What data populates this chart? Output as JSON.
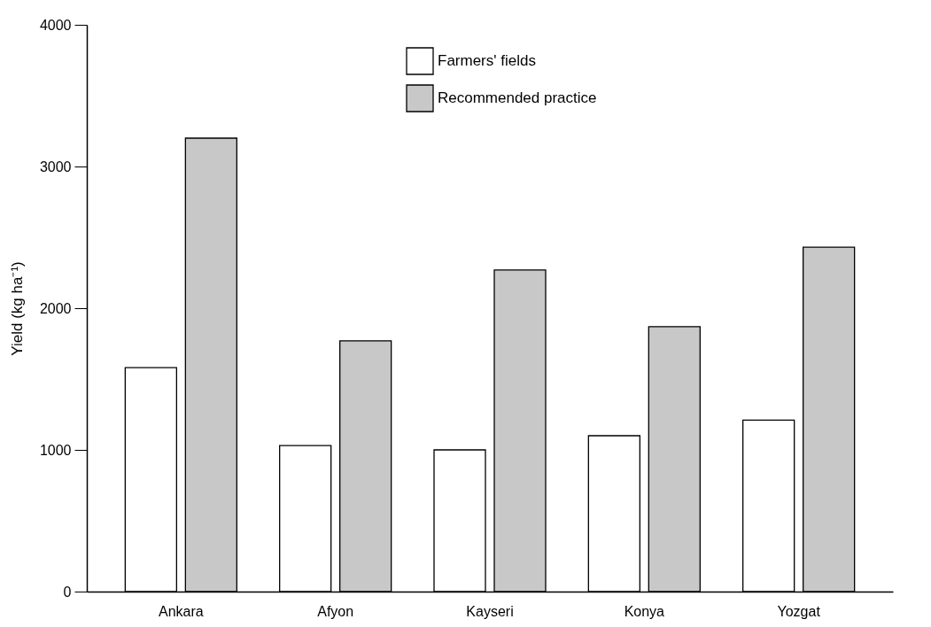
{
  "chart_data": {
    "type": "bar",
    "ylabel": "Yield (kg ha⁻¹)",
    "categories": [
      "Ankara",
      "Afyon",
      "Kayseri",
      "Konya",
      "Yozgat"
    ],
    "series": [
      {
        "name": "Farmers' fields",
        "color": "#ffffff",
        "values": [
          1580,
          1030,
          1000,
          1100,
          1210
        ]
      },
      {
        "name": "Recommended practice",
        "color": "#c8c8c8",
        "values": [
          3200,
          1770,
          2270,
          1870,
          2430
        ]
      }
    ],
    "ylim": [
      0,
      4000
    ],
    "yticks": [
      0,
      1000,
      2000,
      3000,
      4000
    ],
    "grid": false,
    "legend": "top"
  }
}
